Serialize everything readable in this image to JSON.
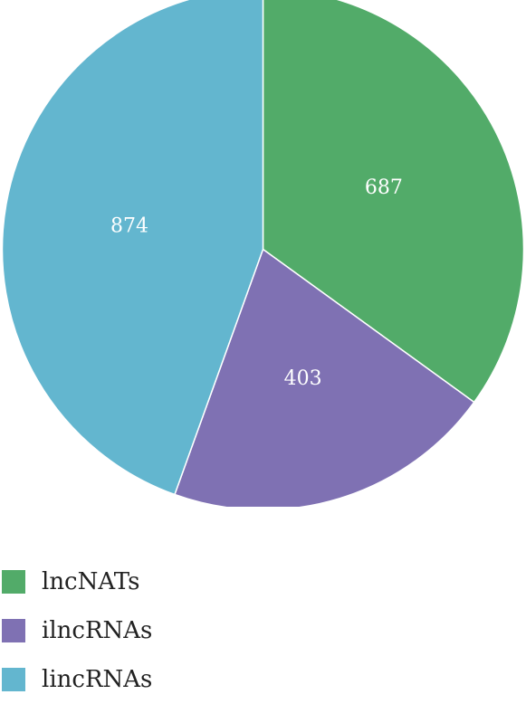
{
  "chart_data": {
    "type": "pie",
    "slices": [
      {
        "label": "lncNATs",
        "value": 687,
        "color": "#52ab69"
      },
      {
        "label": "ilncRNAs",
        "value": 403,
        "color": "#7f71b3"
      },
      {
        "label": "lincRNAs",
        "value": 874,
        "color": "#63b6cf"
      }
    ],
    "start_angle": "12 o'clock",
    "direction": "clockwise",
    "data_labels": "inside",
    "legend_position": "bottom-left"
  }
}
